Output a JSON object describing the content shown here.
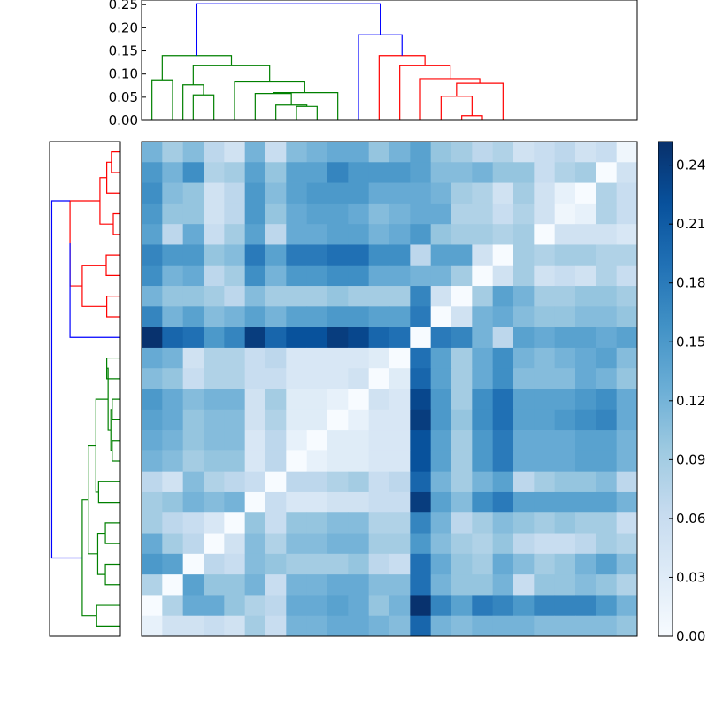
{
  "chart_data": [
    {
      "type": "dendrogram",
      "orientation": "top",
      "y_ticks": [
        "0.00",
        "0.05",
        "0.10",
        "0.15",
        "0.20",
        "0.25"
      ],
      "ylim": [
        0,
        0.26
      ],
      "colors": {
        "left_cluster": "#008000",
        "right_cluster": "#ff0000",
        "root": "#0000ff"
      },
      "links": [
        {
          "x1": 1,
          "x2": 2,
          "h": 0.0875,
          "y1": 0,
          "y2": 0,
          "color": "#008000"
        },
        {
          "x1": 3,
          "x2": 4,
          "h": 0.055,
          "y1": 0,
          "y2": 0,
          "color": "#008000"
        },
        {
          "x1": 2.5,
          "x2": 3.5,
          "h": 0.077,
          "y1": 0,
          "y2": 0.055,
          "color": "#008000"
        },
        {
          "x1": 8,
          "x2": 9,
          "h": 0.03,
          "y1": 0,
          "y2": 0,
          "color": "#008000"
        },
        {
          "x1": 7,
          "x2": 8.5,
          "h": 0.033,
          "y1": 0,
          "y2": 0.03,
          "color": "#008000"
        },
        {
          "x1": 6,
          "x2": 7.75,
          "h": 0.058,
          "y1": 0,
          "y2": 0.033,
          "color": "#008000"
        },
        {
          "x1": 6.875,
          "x2": 10,
          "h": 0.06,
          "y1": 0.058,
          "y2": 0,
          "color": "#008000"
        },
        {
          "x1": 5,
          "x2": 8.4,
          "h": 0.083,
          "y1": 0,
          "y2": 0.06,
          "color": "#008000"
        },
        {
          "x1": 3,
          "x2": 6.7,
          "h": 0.118,
          "y1": 0.077,
          "y2": 0.083,
          "color": "#008000"
        },
        {
          "x1": 1.5,
          "x2": 4.85,
          "h": 0.14,
          "y1": 0.0875,
          "y2": 0.118,
          "color": "#008000"
        },
        {
          "x1": 16,
          "x2": 17,
          "h": 0.01,
          "y1": 0,
          "y2": 0,
          "color": "#ff0000"
        },
        {
          "x1": 15,
          "x2": 16.5,
          "h": 0.052,
          "y1": 0,
          "y2": 0.01,
          "color": "#ff0000"
        },
        {
          "x1": 15.75,
          "x2": 18,
          "h": 0.08,
          "y1": 0.052,
          "y2": 0,
          "color": "#ff0000"
        },
        {
          "x1": 14,
          "x2": 16.875,
          "h": 0.09,
          "y1": 0,
          "y2": 0.08,
          "color": "#ff0000"
        },
        {
          "x1": 13,
          "x2": 15.44,
          "h": 0.118,
          "y1": 0,
          "y2": 0.09,
          "color": "#ff0000"
        },
        {
          "x1": 12,
          "x2": 14.22,
          "h": 0.14,
          "y1": 0,
          "y2": 0.118,
          "color": "#ff0000"
        },
        {
          "x1": 11,
          "x2": 13.11,
          "h": 0.185,
          "y1": 0,
          "y2": 0.14,
          "color": "#0000ff"
        },
        {
          "x1": 3.175,
          "x2": 12.055,
          "h": 0.252,
          "y1": 0.14,
          "y2": 0.185,
          "color": "#0000ff"
        }
      ]
    },
    {
      "type": "dendrogram",
      "orientation": "left",
      "colors": {
        "upper_cluster": "#ff0000",
        "lower_cluster": "#008000",
        "root": "#0000ff"
      },
      "links": [
        {
          "r1": 0,
          "r2": 1,
          "h": 0.033,
          "d1": 0,
          "d2": 0,
          "color": "#ff0000"
        },
        {
          "r1": 0.5,
          "r2": 2,
          "h": 0.05,
          "d1": 0.033,
          "d2": 0,
          "color": "#ff0000"
        },
        {
          "r1": 3,
          "r2": 4,
          "h": 0.026,
          "d1": 0,
          "d2": 0,
          "color": "#ff0000"
        },
        {
          "r1": 1.25,
          "r2": 3.5,
          "h": 0.075,
          "d1": 0.05,
          "d2": 0.026,
          "color": "#ff0000"
        },
        {
          "r1": 5,
          "r2": 6,
          "h": 0.052,
          "d1": 0,
          "d2": 0,
          "color": "#ff0000"
        },
        {
          "r1": 7,
          "r2": 8,
          "h": 0.05,
          "d1": 0,
          "d2": 0,
          "color": "#ff0000"
        },
        {
          "r1": 5.5,
          "r2": 7.5,
          "h": 0.14,
          "d1": 0.052,
          "d2": 0.05,
          "color": "#ff0000"
        },
        {
          "r1": 2.375,
          "r2": 6.5,
          "h": 0.185,
          "d1": 0.075,
          "d2": 0.14,
          "color": "#ff0000"
        },
        {
          "r1": 4.44,
          "r2": 9,
          "h": 0.185,
          "d1": 0.185,
          "d2": 0,
          "color": "#0000ff"
        },
        {
          "r1": 10,
          "r2": 11,
          "h": 0.05,
          "d1": 0,
          "d2": 0,
          "color": "#008000"
        },
        {
          "r1": 12,
          "r2": 13,
          "h": 0.03,
          "d1": 0,
          "d2": 0,
          "color": "#008000"
        },
        {
          "r1": 14,
          "r2": 15,
          "h": 0.03,
          "d1": 0,
          "d2": 0,
          "color": "#008000"
        },
        {
          "r1": 12.5,
          "r2": 14.5,
          "h": 0.035,
          "d1": 0.03,
          "d2": 0.03,
          "color": "#008000"
        },
        {
          "r1": 10.5,
          "r2": 13.5,
          "h": 0.045,
          "d1": 0.05,
          "d2": 0.035,
          "color": "#008000"
        },
        {
          "r1": 16,
          "r2": 17,
          "h": 0.08,
          "d1": 0,
          "d2": 0,
          "color": "#008000"
        },
        {
          "r1": 18,
          "r2": 19,
          "h": 0.055,
          "d1": 0,
          "d2": 0,
          "color": "#008000"
        },
        {
          "r1": 20,
          "r2": 21,
          "h": 0.055,
          "d1": 0,
          "d2": 0,
          "color": "#008000"
        },
        {
          "r1": 18.5,
          "r2": 20.5,
          "h": 0.083,
          "d1": 0.055,
          "d2": 0.055,
          "color": "#008000"
        },
        {
          "r1": 22,
          "r2": 23,
          "h": 0.087,
          "d1": 0,
          "d2": 0,
          "color": "#008000"
        },
        {
          "r1": 12,
          "r2": 16.5,
          "h": 0.09,
          "d1": 0.045,
          "d2": 0.08,
          "color": "#008000"
        },
        {
          "r1": 14.25,
          "r2": 19.5,
          "h": 0.118,
          "d1": 0.09,
          "d2": 0.083,
          "color": "#008000"
        },
        {
          "r1": 16.875,
          "r2": 22.5,
          "h": 0.14,
          "d1": 0.118,
          "d2": 0.087,
          "color": "#008000"
        },
        {
          "r1": 2.375,
          "r2": 19.7,
          "h": 0.252,
          "d1": 0.185,
          "d2": 0.14,
          "color": "#0000ff"
        }
      ]
    },
    {
      "type": "heatmap",
      "rows": 24,
      "cols": 24,
      "vmin": 0,
      "vmax": 0.252,
      "colormap": "Blues",
      "matrix": [
        [
          0.12,
          0.09,
          0.11,
          0.07,
          0.05,
          0.12,
          0.06,
          0.11,
          0.12,
          0.13,
          0.13,
          0.1,
          0.12,
          0.14,
          0.1,
          0.09,
          0.07,
          0.08,
          0.05,
          0.06,
          0.07,
          0.05,
          0.06,
          0.01
        ],
        [
          0.15,
          0.12,
          0.16,
          0.08,
          0.09,
          0.14,
          0.1,
          0.14,
          0.14,
          0.17,
          0.15,
          0.15,
          0.15,
          0.14,
          0.11,
          0.11,
          0.12,
          0.1,
          0.1,
          0.06,
          0.08,
          0.09,
          0.0,
          0.05
        ],
        [
          0.16,
          0.11,
          0.1,
          0.05,
          0.07,
          0.15,
          0.11,
          0.14,
          0.15,
          0.15,
          0.15,
          0.13,
          0.13,
          0.13,
          0.12,
          0.09,
          0.08,
          0.05,
          0.09,
          0.05,
          0.02,
          0.0,
          0.08,
          0.06
        ],
        [
          0.15,
          0.1,
          0.1,
          0.05,
          0.07,
          0.15,
          0.1,
          0.13,
          0.14,
          0.14,
          0.13,
          0.11,
          0.12,
          0.13,
          0.13,
          0.08,
          0.08,
          0.06,
          0.08,
          0.05,
          0.01,
          0.02,
          0.08,
          0.06
        ],
        [
          0.14,
          0.07,
          0.13,
          0.06,
          0.09,
          0.14,
          0.07,
          0.13,
          0.13,
          0.14,
          0.14,
          0.12,
          0.13,
          0.15,
          0.1,
          0.09,
          0.09,
          0.08,
          0.09,
          0.0,
          0.05,
          0.05,
          0.05,
          0.04
        ],
        [
          0.17,
          0.15,
          0.15,
          0.1,
          0.11,
          0.18,
          0.14,
          0.18,
          0.18,
          0.19,
          0.19,
          0.16,
          0.16,
          0.07,
          0.14,
          0.14,
          0.05,
          0.0,
          0.09,
          0.08,
          0.09,
          0.09,
          0.08,
          0.08
        ],
        [
          0.16,
          0.12,
          0.13,
          0.07,
          0.09,
          0.16,
          0.12,
          0.15,
          0.15,
          0.16,
          0.16,
          0.13,
          0.13,
          0.12,
          0.12,
          0.09,
          0.0,
          0.05,
          0.09,
          0.05,
          0.06,
          0.05,
          0.08,
          0.06
        ],
        [
          0.12,
          0.1,
          0.1,
          0.09,
          0.07,
          0.11,
          0.09,
          0.09,
          0.09,
          0.1,
          0.09,
          0.09,
          0.09,
          0.17,
          0.05,
          0.0,
          0.09,
          0.14,
          0.12,
          0.09,
          0.09,
          0.1,
          0.1,
          0.09
        ],
        [
          0.17,
          0.12,
          0.14,
          0.11,
          0.12,
          0.14,
          0.12,
          0.14,
          0.14,
          0.15,
          0.15,
          0.14,
          0.14,
          0.18,
          0.0,
          0.05,
          0.12,
          0.13,
          0.11,
          0.1,
          0.1,
          0.11,
          0.11,
          0.1
        ],
        [
          0.25,
          0.2,
          0.19,
          0.15,
          0.17,
          0.24,
          0.2,
          0.22,
          0.22,
          0.24,
          0.23,
          0.2,
          0.19,
          0.0,
          0.18,
          0.17,
          0.12,
          0.07,
          0.14,
          0.13,
          0.14,
          0.14,
          0.13,
          0.14
        ],
        [
          0.13,
          0.12,
          0.05,
          0.08,
          0.08,
          0.06,
          0.07,
          0.04,
          0.04,
          0.04,
          0.04,
          0.03,
          0.0,
          0.19,
          0.14,
          0.09,
          0.13,
          0.16,
          0.12,
          0.11,
          0.12,
          0.13,
          0.14,
          0.11
        ],
        [
          0.11,
          0.1,
          0.06,
          0.08,
          0.08,
          0.06,
          0.06,
          0.04,
          0.04,
          0.04,
          0.05,
          0.0,
          0.03,
          0.2,
          0.14,
          0.09,
          0.13,
          0.16,
          0.11,
          0.11,
          0.11,
          0.13,
          0.12,
          0.1
        ],
        [
          0.15,
          0.13,
          0.11,
          0.12,
          0.12,
          0.05,
          0.09,
          0.03,
          0.03,
          0.02,
          0.0,
          0.05,
          0.04,
          0.23,
          0.15,
          0.09,
          0.16,
          0.19,
          0.14,
          0.14,
          0.14,
          0.15,
          0.16,
          0.13
        ],
        [
          0.14,
          0.13,
          0.1,
          0.11,
          0.11,
          0.05,
          0.08,
          0.03,
          0.03,
          0.0,
          0.02,
          0.04,
          0.04,
          0.24,
          0.15,
          0.1,
          0.16,
          0.19,
          0.14,
          0.14,
          0.15,
          0.16,
          0.17,
          0.13
        ],
        [
          0.13,
          0.12,
          0.1,
          0.11,
          0.11,
          0.04,
          0.07,
          0.02,
          0.0,
          0.03,
          0.03,
          0.04,
          0.04,
          0.22,
          0.14,
          0.09,
          0.15,
          0.18,
          0.13,
          0.13,
          0.13,
          0.14,
          0.14,
          0.12
        ],
        [
          0.12,
          0.11,
          0.09,
          0.1,
          0.1,
          0.04,
          0.07,
          0.0,
          0.02,
          0.03,
          0.03,
          0.04,
          0.04,
          0.22,
          0.14,
          0.09,
          0.15,
          0.18,
          0.13,
          0.13,
          0.13,
          0.14,
          0.14,
          0.12
        ],
        [
          0.07,
          0.05,
          0.11,
          0.08,
          0.07,
          0.06,
          0.0,
          0.07,
          0.07,
          0.08,
          0.09,
          0.06,
          0.07,
          0.2,
          0.12,
          0.09,
          0.12,
          0.14,
          0.07,
          0.09,
          0.1,
          0.1,
          0.11,
          0.07
        ],
        [
          0.09,
          0.1,
          0.12,
          0.11,
          0.12,
          0.0,
          0.06,
          0.04,
          0.04,
          0.05,
          0.05,
          0.06,
          0.06,
          0.24,
          0.14,
          0.11,
          0.16,
          0.18,
          0.14,
          0.14,
          0.14,
          0.14,
          0.14,
          0.12
        ],
        [
          0.09,
          0.07,
          0.06,
          0.04,
          0.0,
          0.1,
          0.06,
          0.1,
          0.1,
          0.11,
          0.11,
          0.08,
          0.08,
          0.17,
          0.12,
          0.07,
          0.09,
          0.11,
          0.1,
          0.09,
          0.1,
          0.09,
          0.09,
          0.06
        ],
        [
          0.13,
          0.09,
          0.07,
          0.0,
          0.05,
          0.11,
          0.08,
          0.11,
          0.11,
          0.12,
          0.12,
          0.09,
          0.09,
          0.15,
          0.11,
          0.09,
          0.08,
          0.1,
          0.07,
          0.06,
          0.06,
          0.07,
          0.09,
          0.08
        ],
        [
          0.15,
          0.14,
          0.0,
          0.07,
          0.06,
          0.11,
          0.1,
          0.09,
          0.09,
          0.09,
          0.1,
          0.07,
          0.06,
          0.19,
          0.13,
          0.1,
          0.09,
          0.13,
          0.11,
          0.09,
          0.1,
          0.12,
          0.14,
          0.11
        ],
        [
          0.08,
          0.0,
          0.14,
          0.1,
          0.1,
          0.12,
          0.06,
          0.12,
          0.12,
          0.13,
          0.13,
          0.11,
          0.11,
          0.19,
          0.12,
          0.1,
          0.1,
          0.12,
          0.06,
          0.1,
          0.1,
          0.11,
          0.1,
          0.08
        ],
        [
          0.0,
          0.08,
          0.13,
          0.13,
          0.1,
          0.08,
          0.07,
          0.13,
          0.13,
          0.14,
          0.13,
          0.1,
          0.12,
          0.25,
          0.17,
          0.14,
          0.18,
          0.17,
          0.15,
          0.17,
          0.17,
          0.17,
          0.15,
          0.12
        ],
        [
          0.02,
          0.05,
          0.05,
          0.06,
          0.05,
          0.09,
          0.06,
          0.12,
          0.12,
          0.13,
          0.13,
          0.12,
          0.11,
          0.2,
          0.12,
          0.11,
          0.12,
          0.12,
          0.12,
          0.11,
          0.11,
          0.11,
          0.11,
          0.1
        ]
      ]
    },
    {
      "type": "colorbar",
      "vmin": 0,
      "vmax": 0.252,
      "tick_labels": [
        "0.00",
        "0.03",
        "0.06",
        "0.09",
        "0.12",
        "0.15",
        "0.18",
        "0.21",
        "0.24"
      ],
      "tick_values": [
        0,
        0.03,
        0.06,
        0.09,
        0.12,
        0.15,
        0.18,
        0.21,
        0.24
      ]
    }
  ]
}
